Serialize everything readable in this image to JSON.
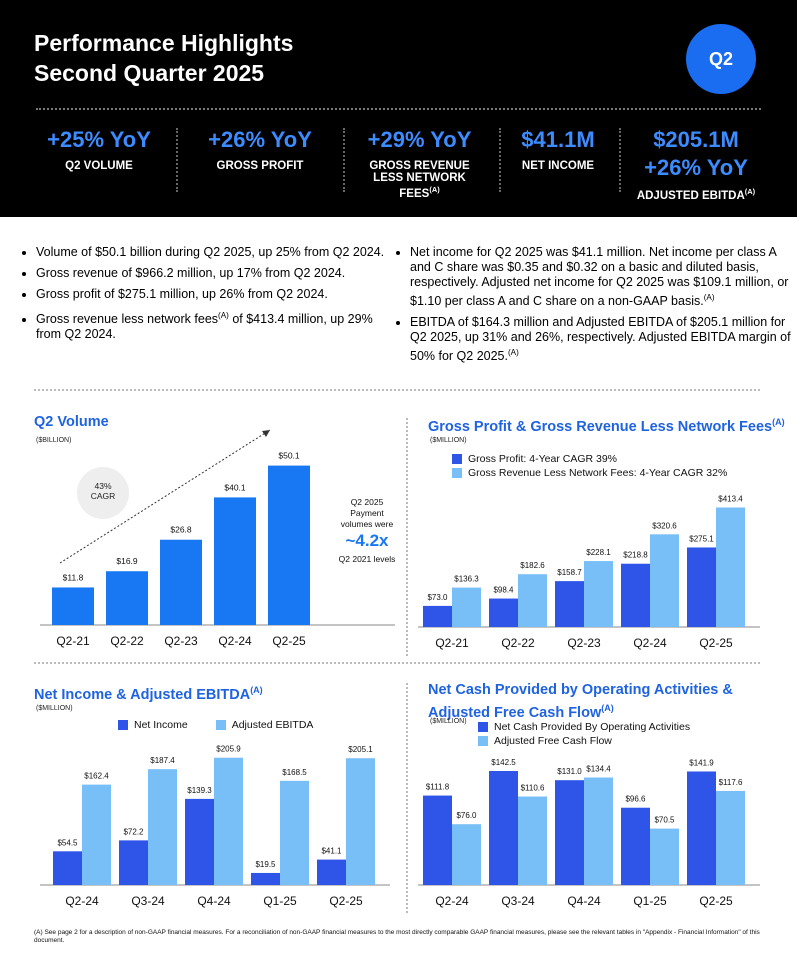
{
  "header": {
    "title": "Performance Highlights\nSecond Quarter 2025",
    "badge": "Q2",
    "kpis": [
      {
        "value": "+25% YoY",
        "label": "Q2 VOLUME"
      },
      {
        "value": "+26% YoY",
        "label": "GROSS PROFIT"
      },
      {
        "value": "+29% YoY",
        "label": "GROSS REVENUE\nLESS NETWORK\nFEES(A)"
      },
      {
        "value": "$41.1M",
        "label": "NET INCOME"
      },
      {
        "value": "$205.1M\n+26% YoY",
        "label": "ADJUSTED EBITDA(A)"
      }
    ]
  },
  "bullets_left": [
    "Volume of $50.1 billion during Q2 2025, up 25% from Q2 2024.",
    "Gross revenue of $966.2 million, up 17% from Q2 2024.",
    "Gross profit of $275.1 million, up 26% from Q2 2024.",
    "Gross revenue less network fees(A) of $413.4 million, up 29% from Q2 2024."
  ],
  "bullets_right": [
    "Net income for Q2 2025 was $41.1 million. Net income per class A and C share was $0.35 and $0.32 on a basic and diluted basis, respectively. Adjusted net income for Q2 2025 was $109.1 million, or $1.10 per class A and C share on a non-GAAP basis.(A)",
    "EBITDA of $164.3 million and Adjusted EBITDA of $205.1 million for Q2 2025, up 31% and 26%, respectively. Adjusted EBITDA margin of 50% for Q2 2025.(A)"
  ],
  "colors": {
    "dark_blue": "#2f55e8",
    "light_blue": "#79bff7",
    "volume_blue": "#1877f2",
    "title_blue": "#1f63e0",
    "kpi_blue": "#3d8cff"
  },
  "chart_data": [
    {
      "type": "bar",
      "title": "Q2 Volume",
      "unit": "($BILLION)",
      "categories": [
        "Q2-21",
        "Q2-22",
        "Q2-23",
        "Q2-24",
        "Q2-25"
      ],
      "values": [
        11.8,
        16.9,
        26.8,
        40.1,
        50.1
      ],
      "value_labels": [
        "$11.8",
        "$16.9",
        "$26.8",
        "$40.1",
        "$50.1"
      ],
      "ylim": [
        0,
        55
      ],
      "cagr_badge": "43%\nCAGR",
      "annotation": {
        "line1": "Q2 2025",
        "line2": "Payment",
        "line3": "volumes were",
        "big": "~4.2x",
        "line4": "Q2 2021 levels"
      }
    },
    {
      "type": "bar",
      "title": "Gross Profit & Gross Revenue Less Network Fees",
      "title_sup": "(A)",
      "unit": "($MILLION)",
      "categories": [
        "Q2-21",
        "Q2-22",
        "Q2-23",
        "Q2-24",
        "Q2-25"
      ],
      "series": [
        {
          "name": "Gross Profit: 4-Year CAGR 39%",
          "values": [
            73.0,
            98.4,
            158.7,
            218.8,
            275.1
          ],
          "labels": [
            "$73.0",
            "$98.4",
            "$158.7",
            "$218.8",
            "$275.1"
          ]
        },
        {
          "name": "Gross Revenue Less Network Fees: 4-Year CAGR 32%",
          "values": [
            136.3,
            182.6,
            228.1,
            320.6,
            413.4
          ],
          "labels": [
            "$136.3",
            "$182.6",
            "$228.1",
            "$320.6",
            "$413.4"
          ]
        }
      ],
      "ylim": [
        0,
        460
      ]
    },
    {
      "type": "bar",
      "title": "Net Income & Adjusted EBITDA",
      "title_sup": "(A)",
      "unit": "($MILLION)",
      "categories": [
        "Q2-24",
        "Q3-24",
        "Q4-24",
        "Q1-25",
        "Q2-25"
      ],
      "series": [
        {
          "name": "Net Income",
          "values": [
            54.5,
            72.2,
            139.3,
            19.5,
            41.1
          ],
          "labels": [
            "$54.5",
            "$72.2",
            "$139.3",
            "$19.5",
            "$41.1"
          ]
        },
        {
          "name": "Adjusted EBITDA",
          "values": [
            162.4,
            187.4,
            205.9,
            168.5,
            205.1
          ],
          "labels": [
            "$162.4",
            "$187.4",
            "$205.9",
            "$168.5",
            "$205.1"
          ]
        }
      ],
      "ylim": [
        0,
        220
      ]
    },
    {
      "type": "bar",
      "title": "Net Cash Provided by Operating Activities &\nAdjusted Free Cash Flow",
      "title_sup": "(A)",
      "unit": "($MILLION)",
      "categories": [
        "Q2-24",
        "Q3-24",
        "Q4-24",
        "Q1-25",
        "Q2-25"
      ],
      "series": [
        {
          "name": "Net Cash Provided By Operating Activities",
          "values": [
            111.8,
            142.5,
            131.0,
            96.6,
            141.9
          ],
          "labels": [
            "$111.8",
            "$142.5",
            "$131.0",
            "$96.6",
            "$141.9"
          ]
        },
        {
          "name": "Adjusted Free Cash Flow",
          "values": [
            76.0,
            110.6,
            134.4,
            70.5,
            117.6
          ],
          "labels": [
            "$76.0",
            "$110.6",
            "$134.4",
            "$70.5",
            "$117.6"
          ]
        }
      ],
      "ylim": [
        0,
        155
      ]
    }
  ],
  "footnote": "(A) See page 2 for a description of non-GAAP financial measures. For a reconciliation of non-GAAP financial measures to the most directly comparable GAAP financial measures, please see the relevant tables in \"Appendix - Financial Information\" of this document."
}
